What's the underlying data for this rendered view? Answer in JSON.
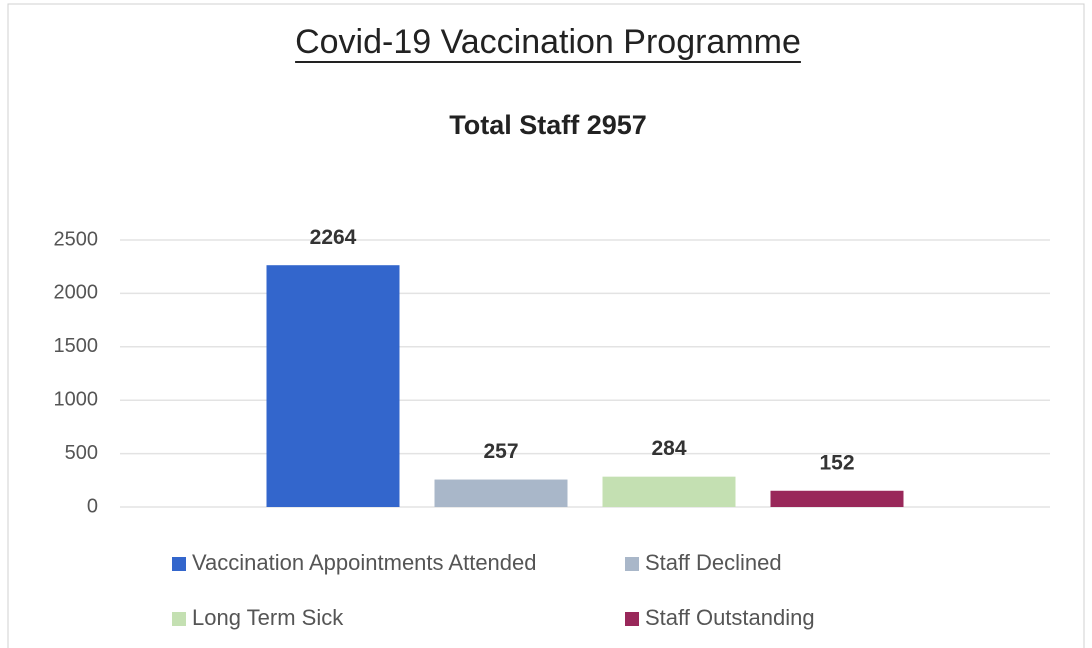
{
  "chart_data": {
    "type": "bar",
    "title": "Covid-19 Vaccination Programme",
    "subtitle": "Total Staff 2957",
    "series": [
      {
        "name": "Vaccination Appointments Attended",
        "color": "#3366cc",
        "values": [
          2264
        ]
      },
      {
        "name": "Staff Declined",
        "color": "#a9b7c9",
        "values": [
          257
        ]
      },
      {
        "name": "Long Term Sick",
        "color": "#c4e0b2",
        "values": [
          284
        ]
      },
      {
        "name": "Staff Outstanding",
        "color": "#99285a",
        "values": [
          152
        ]
      }
    ],
    "ylim": [
      0,
      2500
    ],
    "yticks": [
      0,
      500,
      1000,
      1500,
      2000,
      2500
    ],
    "grid": true,
    "legend": "bottom"
  }
}
